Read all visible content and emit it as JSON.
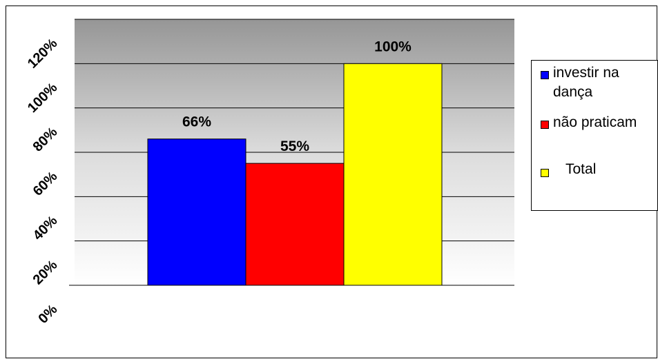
{
  "chart_data": {
    "type": "bar",
    "title": "",
    "xlabel": "",
    "ylabel": "",
    "categories": [
      "investir na dança",
      "não praticam",
      "Total"
    ],
    "values": [
      66,
      55,
      100
    ],
    "data_labels": [
      "66%",
      "55%",
      "100%"
    ],
    "colors": [
      "#0000FF",
      "#FF0000",
      "#FFFF00"
    ],
    "ylim": [
      0,
      120
    ],
    "yticks": [
      0,
      20,
      40,
      60,
      80,
      100,
      120
    ],
    "ytick_labels": [
      "0%",
      "20%",
      "40%",
      "60%",
      "80%",
      "100%",
      "120%"
    ],
    "grid": true,
    "plot_background": "gradient gray (top) to white (bottom)",
    "legend": {
      "position": "right",
      "entries": [
        {
          "label_lines": [
            "investir na",
            "dança"
          ],
          "color": "#0000FF"
        },
        {
          "label_lines": [
            "não praticam"
          ],
          "color": "#FF0000"
        },
        {
          "label_lines": [
            "Total"
          ],
          "color": "#FFFF00"
        }
      ]
    }
  }
}
